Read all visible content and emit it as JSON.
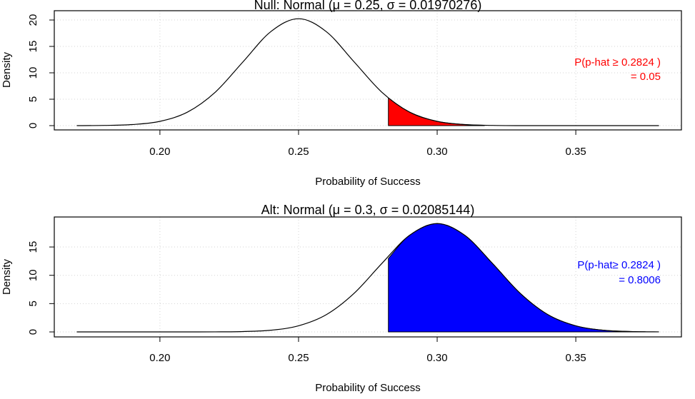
{
  "chart_data": [
    {
      "type": "density",
      "title": "Null: Normal (μ = 0.25, σ = 0.01970276)",
      "x_label": "Probability of Success",
      "y_label": "Density",
      "curve": {
        "color": "#000000",
        "x": [
          0.17,
          0.18,
          0.19,
          0.2,
          0.21,
          0.22,
          0.23,
          0.24,
          0.25,
          0.26,
          0.27,
          0.28,
          0.29,
          0.3,
          0.31,
          0.32,
          0.33,
          0.34,
          0.35,
          0.36,
          0.37,
          0.38
        ],
        "values": [
          0.0,
          0.04,
          0.2,
          0.81,
          2.58,
          6.35,
          12.1,
          17.8,
          20.25,
          17.8,
          12.1,
          6.35,
          2.58,
          0.81,
          0.2,
          0.04,
          0.0,
          0.0,
          0.0,
          0.0,
          0.0,
          0.0
        ]
      },
      "shade": {
        "color": "#ff0000",
        "x": [
          0.2824,
          0.29,
          0.3,
          0.31,
          0.317
        ],
        "values": [
          5.23,
          2.58,
          0.81,
          0.2,
          0.07
        ]
      },
      "annotation": [
        "P(p-hat ≥ 0.2824 )",
        "= 0.05"
      ],
      "annotation_color": "#ff0000",
      "xlim": [
        0.1619,
        0.3881
      ],
      "ylim": [
        -0.81,
        21.76
      ],
      "xticks": [
        {
          "value": 0.2,
          "label": "0.20"
        },
        0.25,
        {
          "value": 0.3,
          "label": "0.30"
        },
        0.35
      ],
      "yticks": [
        0,
        5,
        10,
        15,
        20
      ],
      "grid": true
    },
    {
      "type": "density",
      "title": "Alt: Normal (μ = 0.3, σ = 0.02085144)",
      "x_label": "Probability of Success",
      "y_label": "Density",
      "curve": {
        "color": "#000000",
        "x": [
          0.17,
          0.18,
          0.19,
          0.2,
          0.21,
          0.22,
          0.23,
          0.24,
          0.25,
          0.26,
          0.27,
          0.28,
          0.29,
          0.3,
          0.31,
          0.32,
          0.33,
          0.34,
          0.35,
          0.36,
          0.37,
          0.38
        ],
        "values": [
          0.0,
          0.0,
          0.0,
          0.0,
          0.0,
          0.01,
          0.07,
          0.3,
          1.08,
          3.04,
          6.8,
          12.07,
          17.05,
          19.13,
          17.05,
          12.07,
          6.8,
          3.04,
          1.08,
          0.3,
          0.07,
          0.01
        ]
      },
      "shade": {
        "color": "#0000ff",
        "x": [
          0.2824,
          0.29,
          0.3,
          0.31,
          0.32,
          0.33,
          0.34,
          0.35,
          0.36,
          0.37,
          0.375
        ],
        "values": [
          12.96,
          17.05,
          19.13,
          17.05,
          12.07,
          6.8,
          3.04,
          1.08,
          0.3,
          0.07,
          0.03
        ]
      },
      "annotation": [
        "P(p-hat≥ 0.2824 )",
        "= 0.8006"
      ],
      "annotation_color": "#0000ff",
      "xlim": [
        0.1619,
        0.3881
      ],
      "ylim": [
        -0.88,
        20.3
      ],
      "xticks": [
        {
          "value": 0.2,
          "label": "0.20"
        },
        0.25,
        {
          "value": 0.3,
          "label": "0.30"
        },
        0.35
      ],
      "yticks": [
        0,
        5,
        10,
        15
      ],
      "grid": true
    }
  ]
}
